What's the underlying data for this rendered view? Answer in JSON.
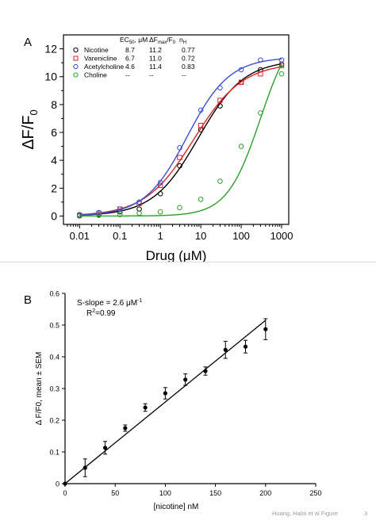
{
  "footer": {
    "credit": "Huang, Haloi et al  Figure",
    "page": "3"
  },
  "chart_data": [
    {
      "type": "scatter",
      "panel_label": "A",
      "xlabel": "Drug (μM)",
      "ylabel_main": "ΔF/F",
      "ylabel_sub": "0",
      "xscale": "log",
      "xlim": [
        0.004,
        1500
      ],
      "ylim": [
        -0.6,
        13
      ],
      "x_ticks": [
        0.01,
        0.1,
        1,
        10,
        100,
        1000
      ],
      "x_tick_labels": [
        "0.01",
        "0.1",
        "1",
        "10",
        "100",
        "1000"
      ],
      "y_ticks": [
        0,
        2,
        4,
        6,
        8,
        10,
        12
      ],
      "grid": false,
      "legend": {
        "placement": "top-left",
        "headers": [
          "EC50, μM",
          "ΔFmax/F0",
          "nH"
        ],
        "header_parts": [
          {
            "main": "EC",
            "sub": "50",
            "rest": ", μM"
          },
          {
            "main": "ΔF",
            "sub": "max",
            "rest": "/F",
            "sub2": "0"
          },
          {
            "main": "n",
            "sub": "H",
            "rest": ""
          }
        ]
      },
      "series": [
        {
          "name": "Nicotine",
          "color": "#000000",
          "marker": "circle",
          "ec50": "8.7",
          "fmax": "11.2",
          "nh": "0.77",
          "fit": {
            "ec50": 8.7,
            "top": 11.2,
            "n": 0.77
          },
          "x": [
            0.01,
            0.03,
            0.1,
            0.3,
            1,
            3,
            10,
            30,
            100,
            300,
            1000
          ],
          "y": [
            0.05,
            0.1,
            0.3,
            0.5,
            1.6,
            3.6,
            6.2,
            7.9,
            9.6,
            10.5,
            10.9
          ]
        },
        {
          "name": "Varenicline",
          "color": "#d62728",
          "marker": "square",
          "ec50": "6.7",
          "fmax": "11.0",
          "nh": "0.72",
          "fit": {
            "ec50": 6.7,
            "top": 11.0,
            "n": 0.72
          },
          "x": [
            0.01,
            0.03,
            0.1,
            0.3,
            1,
            3,
            10,
            30,
            100,
            300,
            1000
          ],
          "y": [
            0.05,
            0.2,
            0.5,
            0.9,
            2.2,
            4.2,
            6.5,
            8.3,
            9.6,
            10.2,
            10.8
          ]
        },
        {
          "name": "Acetylcholine",
          "color": "#3a4fd0",
          "marker": "circle",
          "ec50": "4.6",
          "fmax": "11.4",
          "nh": "0.83",
          "fit": {
            "ec50": 4.6,
            "top": 11.4,
            "n": 0.83
          },
          "x": [
            0.01,
            0.03,
            0.1,
            0.3,
            1,
            3,
            10,
            30,
            100,
            300,
            1000
          ],
          "y": [
            0.1,
            0.25,
            0.5,
            1.0,
            2.4,
            4.9,
            7.6,
            9.2,
            10.5,
            11.2,
            11.2
          ]
        },
        {
          "name": "Choline",
          "color": "#2ca02c",
          "marker": "circle",
          "ec50": "--",
          "fmax": "--",
          "nh": "--",
          "fit": {
            "ec50": 300,
            "top": 14,
            "n": 1.05
          },
          "x": [
            0.01,
            0.03,
            0.1,
            0.3,
            1,
            3,
            10,
            30,
            100,
            300,
            1000
          ],
          "y": [
            0.0,
            0.05,
            0.1,
            0.2,
            0.3,
            0.6,
            1.2,
            2.5,
            5.0,
            7.4,
            10.2
          ]
        }
      ]
    },
    {
      "type": "scatter",
      "panel_label": "B",
      "xlabel": "[nicotine] nM",
      "ylabel": "Δ F/F0, mean ± SEM",
      "xlim": [
        0,
        250
      ],
      "ylim": [
        0,
        0.6
      ],
      "x_ticks": [
        0,
        50,
        100,
        150,
        200,
        250
      ],
      "y_ticks": [
        0,
        0.1,
        0.2,
        0.3,
        0.4,
        0.5,
        0.6
      ],
      "grid": false,
      "annotation": {
        "line1": "S-slope = 2.6 μM",
        "line1_sup": "-1",
        "line2_pre": "R",
        "line2_sup": "2",
        "line2_post": "=0.99"
      },
      "fit_line": {
        "x": [
          0,
          200
        ],
        "y": [
          0,
          0.515
        ]
      },
      "series": [
        {
          "color": "#000000",
          "x": [
            0,
            20,
            40,
            60,
            80,
            100,
            120,
            140,
            160,
            180,
            200
          ],
          "y": [
            0.0,
            0.05,
            0.113,
            0.175,
            0.24,
            0.285,
            0.328,
            0.355,
            0.422,
            0.432,
            0.487
          ],
          "err": [
            0.0,
            0.028,
            0.02,
            0.01,
            0.012,
            0.018,
            0.018,
            0.013,
            0.027,
            0.02,
            0.033
          ]
        }
      ]
    }
  ]
}
